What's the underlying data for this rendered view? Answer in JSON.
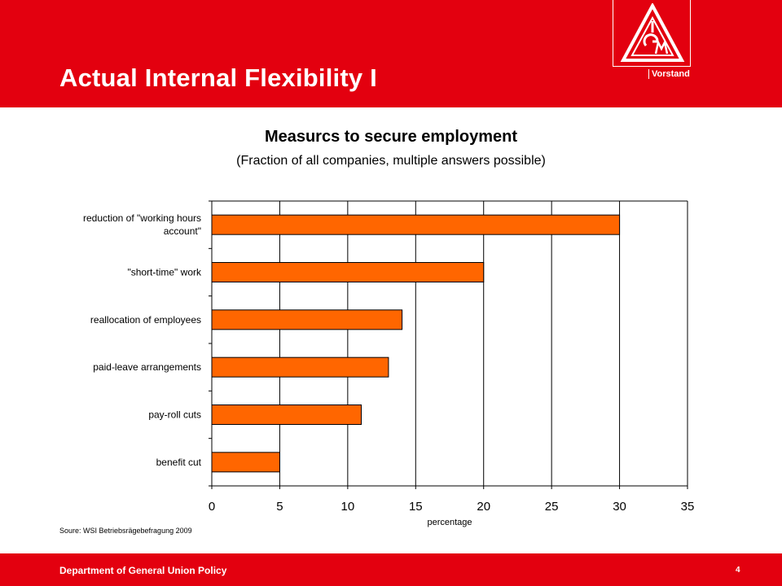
{
  "header": {
    "title": "Actual Internal Flexibility I",
    "org_label": "Vorstand",
    "logo_icon": "ig-metall-triangle-logo"
  },
  "chart_data": {
    "type": "bar",
    "orientation": "horizontal",
    "title": "Measurcs to secure employment",
    "subtitle": "(Fraction of all companies, multiple answers possible)",
    "xlabel": "percentage",
    "ylabel": "",
    "categories": [
      "reduction of \"working hours account\"",
      "\"short-time\" work",
      "reallocation of employees",
      "paid-leave arrangements",
      "pay-roll cuts",
      "benefit cut"
    ],
    "category_lines": [
      [
        "reduction of \"working hours",
        "account\""
      ],
      [
        "\"short-time\" work"
      ],
      [
        "reallocation of employees"
      ],
      [
        "paid-leave arrangements"
      ],
      [
        "pay-roll cuts"
      ],
      [
        "benefit cut"
      ]
    ],
    "values": [
      30,
      20,
      14,
      13,
      11,
      5
    ],
    "xlim": [
      0,
      35
    ],
    "xticks": [
      0,
      5,
      10,
      15,
      20,
      25,
      30,
      35
    ],
    "grid": true,
    "legend": "none",
    "bar_color": "#ff6600",
    "bar_edge_color": "#000000"
  },
  "source": "Soure: WSI Betriebsrägebefragung 2009",
  "footer": {
    "department": "Department  of General Union Policy",
    "page_number": "4"
  },
  "colors": {
    "brand_red": "#e3000f",
    "text": "#000000"
  }
}
